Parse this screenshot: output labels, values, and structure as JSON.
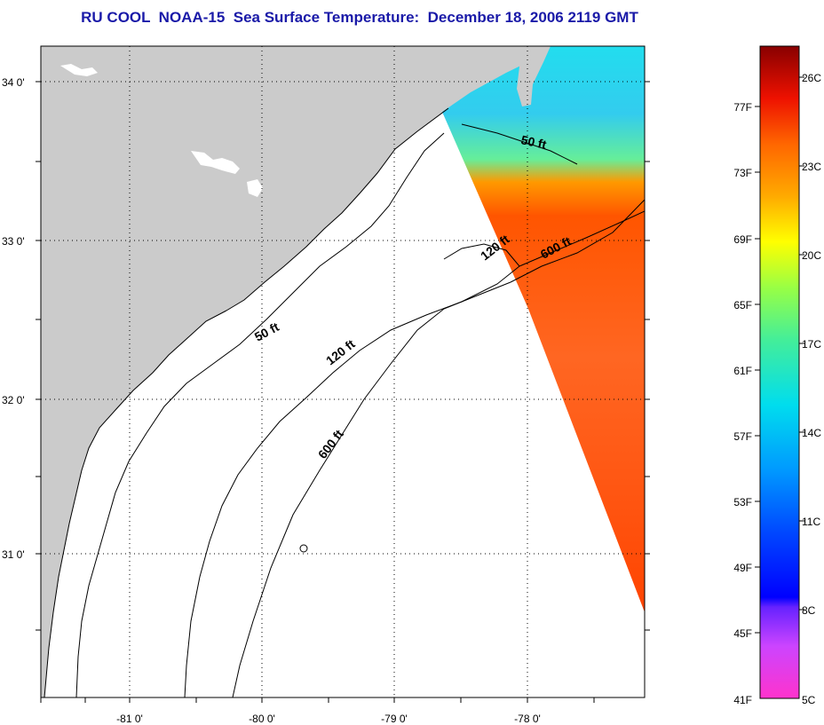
{
  "title": "RU COOL  NOAA-15  Sea Surface Temperature:  December 18, 2006 2119 GMT",
  "colors": {
    "title": "#1a1aa8",
    "land": "#cbcbcb",
    "ocean": "#ffffff",
    "grid": "#000000"
  },
  "map": {
    "lon_labels": [
      "-81 0'",
      "-80 0'",
      "-79 0'",
      "-78 0'"
    ],
    "lat_labels": [
      "34 0'",
      "33 0'",
      "32 0'",
      "31 0'"
    ]
  },
  "contours": [
    {
      "label": "50 ft"
    },
    {
      "label": "120 ft"
    },
    {
      "label": "600 ft"
    },
    {
      "label": "50 ft"
    },
    {
      "label": "120 ft"
    },
    {
      "label": "600 ft"
    }
  ],
  "colorbar": {
    "fahrenheit": [
      "77F",
      "73F",
      "69F",
      "65F",
      "61F",
      "57F",
      "53F",
      "49F",
      "45F",
      "41F"
    ],
    "celsius": [
      "26C",
      "23C",
      "20C",
      "17C",
      "14C",
      "11C",
      "8C",
      "5C"
    ]
  }
}
